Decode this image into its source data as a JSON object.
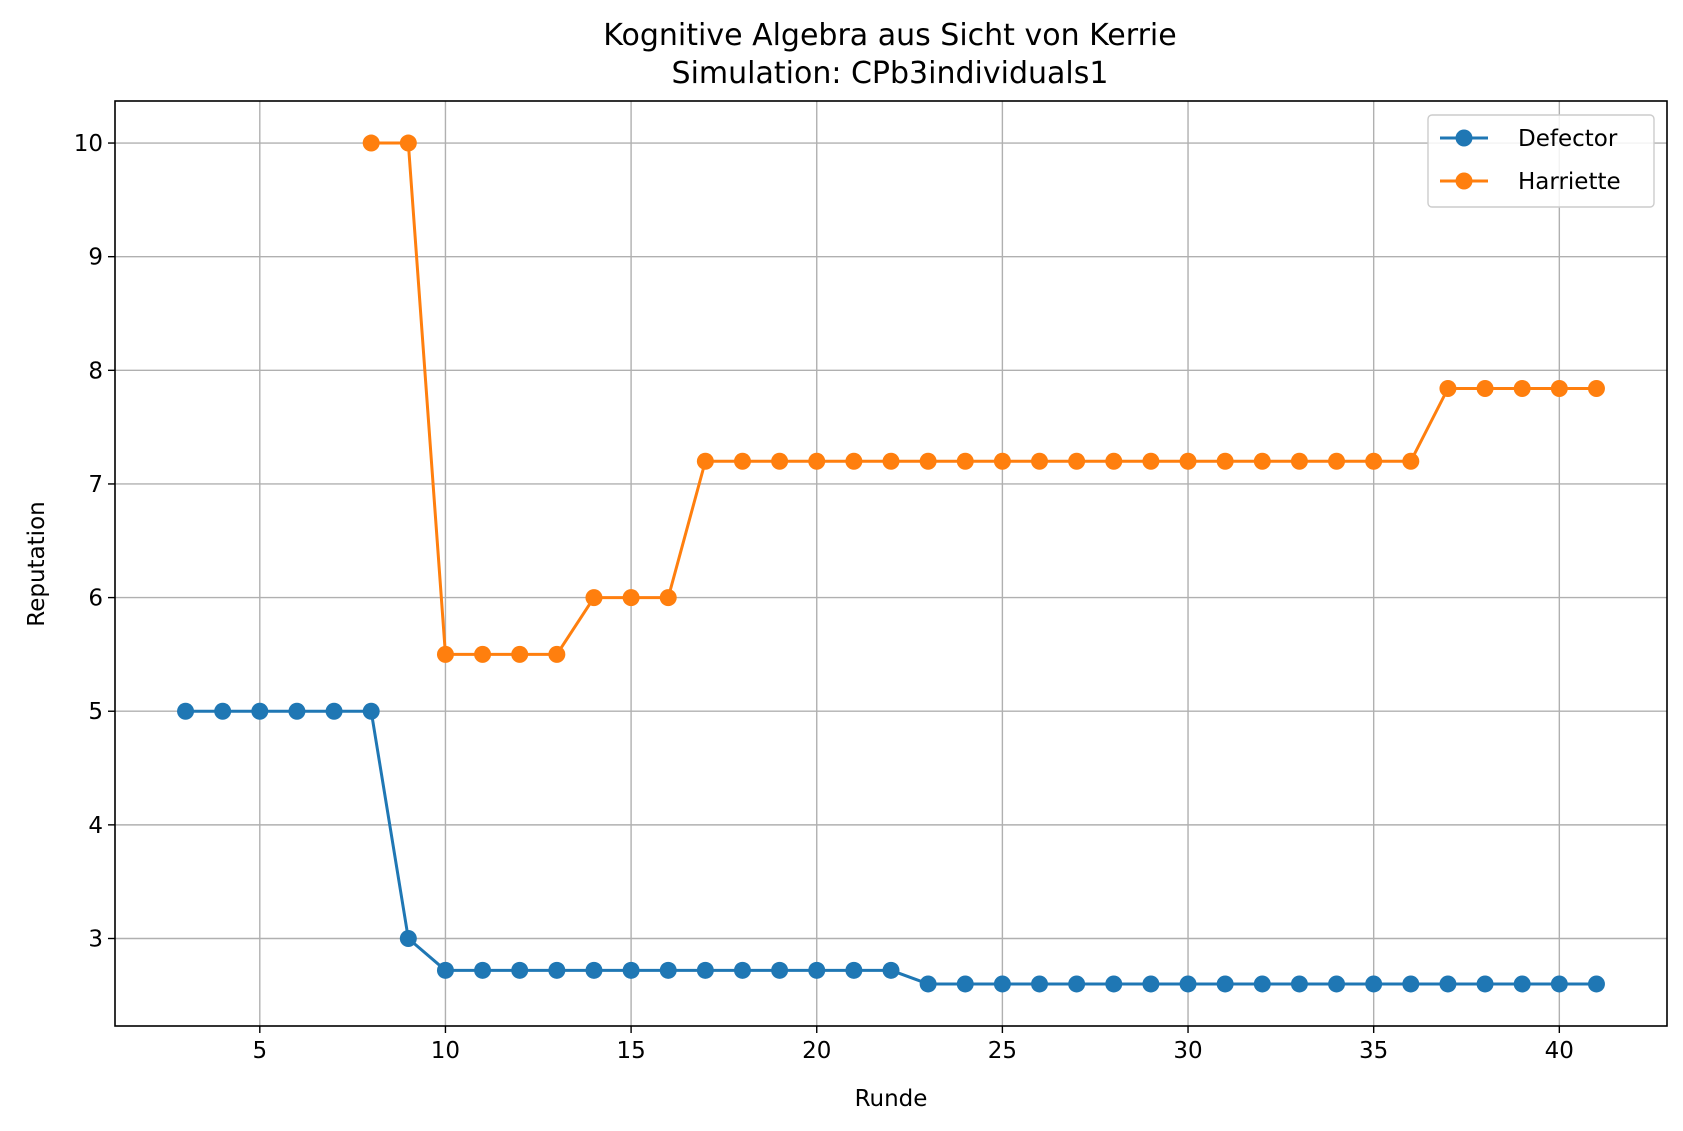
{
  "chart_data": {
    "type": "line",
    "title": "Kognitive Algebra aus Sicht von Kerrie",
    "subtitle": "Simulation: CPb3individuals1",
    "xlabel": "Runde",
    "ylabel": "Reputation",
    "xlim": [
      1.1,
      42.9
    ],
    "ylim": [
      2.23,
      10.37
    ],
    "xticks": [
      5,
      10,
      15,
      20,
      25,
      30,
      35,
      40
    ],
    "yticks": [
      3,
      4,
      5,
      6,
      7,
      8,
      9,
      10
    ],
    "grid": true,
    "legend_position": "top-right",
    "series": [
      {
        "name": "Defector",
        "color": "#1f77b4",
        "x": [
          3,
          4,
          5,
          6,
          7,
          8,
          9,
          10,
          11,
          12,
          13,
          14,
          15,
          16,
          17,
          18,
          19,
          20,
          21,
          22,
          23,
          24,
          25,
          26,
          27,
          28,
          29,
          30,
          31,
          32,
          33,
          34,
          35,
          36,
          37,
          38,
          39,
          40,
          41
        ],
        "y": [
          5,
          5,
          5,
          5,
          5,
          5,
          3,
          2.72,
          2.72,
          2.72,
          2.72,
          2.72,
          2.72,
          2.72,
          2.72,
          2.72,
          2.72,
          2.72,
          2.72,
          2.72,
          2.6,
          2.6,
          2.6,
          2.6,
          2.6,
          2.6,
          2.6,
          2.6,
          2.6,
          2.6,
          2.6,
          2.6,
          2.6,
          2.6,
          2.6,
          2.6,
          2.6,
          2.6,
          2.6
        ]
      },
      {
        "name": "Harriette",
        "color": "#ff7f0e",
        "x": [
          8,
          9,
          10,
          11,
          12,
          13,
          14,
          15,
          16,
          17,
          18,
          19,
          20,
          21,
          22,
          23,
          24,
          25,
          26,
          27,
          28,
          29,
          30,
          31,
          32,
          33,
          34,
          35,
          36,
          37,
          38,
          39,
          40,
          41
        ],
        "y": [
          10,
          10,
          5.5,
          5.5,
          5.5,
          5.5,
          6,
          6,
          6,
          7.2,
          7.2,
          7.2,
          7.2,
          7.2,
          7.2,
          7.2,
          7.2,
          7.2,
          7.2,
          7.2,
          7.2,
          7.2,
          7.2,
          7.2,
          7.2,
          7.2,
          7.2,
          7.2,
          7.2,
          7.84,
          7.84,
          7.84,
          7.84,
          7.84
        ]
      }
    ]
  }
}
